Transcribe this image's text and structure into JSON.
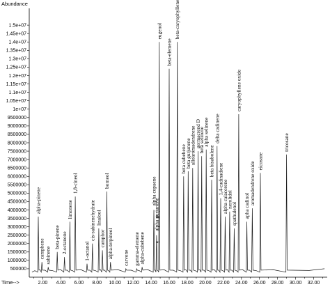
{
  "chart_data": {
    "type": "line",
    "ylabel": "Abundance",
    "xlabel": "Time-->",
    "xlim": [
      0.5,
      33.5
    ],
    "ylim": [
      0,
      16000000
    ],
    "x_ticks": [
      2,
      4,
      6,
      8,
      10,
      12,
      14,
      16,
      18,
      20,
      22,
      24,
      26,
      28,
      30,
      32
    ],
    "x_tick_labels": [
      "2.00",
      "4.00",
      "6.00",
      "8.00",
      "10.00",
      "12.00",
      "14.00",
      "16.00",
      "18.00",
      "20.00",
      "22.00",
      "24.00",
      "26.00",
      "28.00",
      "30.00",
      "32.00"
    ],
    "y_ticks": [
      500000,
      1000000,
      1500000,
      2000000,
      2500000,
      3000000,
      3500000,
      4000000,
      4500000,
      5000000,
      5500000,
      6000000,
      6500000,
      7000000,
      7500000,
      8000000,
      8500000,
      9000000,
      9500000,
      10000000,
      10500000,
      11000000,
      11500000,
      12000000,
      12500000,
      13000000,
      13500000,
      14000000,
      14500000,
      15000000
    ],
    "y_tick_labels": [
      "500000",
      "1000000",
      "1500000",
      "2000000",
      "2500000",
      "3000000",
      "3500000",
      "4000000",
      "4500000",
      "5000000",
      "5500000",
      "6000000",
      "6500000",
      "7000000",
      "7500000",
      "8000000",
      "8500000",
      "9000000",
      "9500000",
      "1e+07",
      "1.05e+07",
      "1.1e+07",
      "1.15e+07",
      "1.2e+07",
      "1.25e+07",
      "1.3e+07",
      "1.35e+07",
      "1.4e+07",
      "1.45e+07",
      "1.5e+07"
    ],
    "baseline": 300000,
    "peaks": [
      {
        "name": "alpha-pinene",
        "x": 1.5,
        "y": 3600000
      },
      {
        "name": "camphene",
        "x": 1.9,
        "y": 900000
      },
      {
        "name": "sabinene",
        "x": 2.6,
        "y": 600000
      },
      {
        "name": "beta-pinene",
        "x": 3.6,
        "y": 1500000
      },
      {
        "name": "2-octanone",
        "x": 4.4,
        "y": 1200000
      },
      {
        "name": "limonene",
        "x": 5.0,
        "y": 3300000
      },
      {
        "name": "1,8-cineol",
        "x": 5.6,
        "y": 4800000
      },
      {
        "name": "1-octanol",
        "x": 6.9,
        "y": 800000
      },
      {
        "name": "cis-sabinenehydrate",
        "x": 7.5,
        "y": 2000000
      },
      {
        "name": "linalool",
        "x": 8.2,
        "y": 2900000
      },
      {
        "name": "camphor",
        "x": 8.6,
        "y": 1600000
      },
      {
        "name": "borneol",
        "x": 9.1,
        "y": 5100000
      },
      {
        "name": "alpha-terpineol",
        "x": 9.5,
        "y": 900000
      },
      {
        "name": "carvone",
        "x": 11.2,
        "y": 500000
      },
      {
        "name": "gamma-elemene",
        "x": 12.4,
        "y": 500000
      },
      {
        "name": "alpha-cubebene",
        "x": 13.0,
        "y": 600000
      },
      {
        "name": "alpha copaene",
        "x": 14.3,
        "y": 4000000
      },
      {
        "name": "alpha gurjunene",
        "x": 14.6,
        "y": 2500000
      },
      {
        "name": "eugenol",
        "x": 14.9,
        "y": 14000000
      },
      {
        "name": "beta-elemene",
        "x": 16.0,
        "y": 12400000
      },
      {
        "name": "beta-caryophyllene",
        "x": 16.9,
        "y": 14000000
      },
      {
        "name": "beta cubebene",
        "x": 17.6,
        "y": 6000000
      },
      {
        "name": "beta gurjunene",
        "x": 18.1,
        "y": 6300000
      },
      {
        "name": "alloaromadendrene",
        "x": 18.6,
        "y": 6500000
      },
      {
        "name": "germacrend D",
        "x": 19.2,
        "y": 7500000
      },
      {
        "name": "beta selinene",
        "x": 19.6,
        "y": 7200000
      },
      {
        "name": "alpha selinene",
        "x": 20.1,
        "y": 7600000
      },
      {
        "name": "beta bisabolene",
        "x": 20.7,
        "y": 5800000
      },
      {
        "name": "delta cadinene",
        "x": 21.3,
        "y": 7800000
      },
      {
        "name": "1,4-cadinadiene",
        "x": 21.7,
        "y": 4700000
      },
      {
        "name": "alpha calacorene",
        "x": 22.2,
        "y": 3600000
      },
      {
        "name": "nerolidol",
        "x": 22.7,
        "y": 3900000
      },
      {
        "name": "spathulenol",
        "x": 23.2,
        "y": 2900000
      },
      {
        "name": "caryophyllene oxide",
        "x": 23.7,
        "y": 9700000
      },
      {
        "name": "apha cadinol",
        "x": 24.6,
        "y": 3300000
      },
      {
        "name": "aromadendrene oxide",
        "x": 25.2,
        "y": 4100000
      },
      {
        "name": "eicosane",
        "x": 26.1,
        "y": 6200000
      },
      {
        "name": "tricosane",
        "x": 29.0,
        "y": 7300000
      }
    ]
  }
}
